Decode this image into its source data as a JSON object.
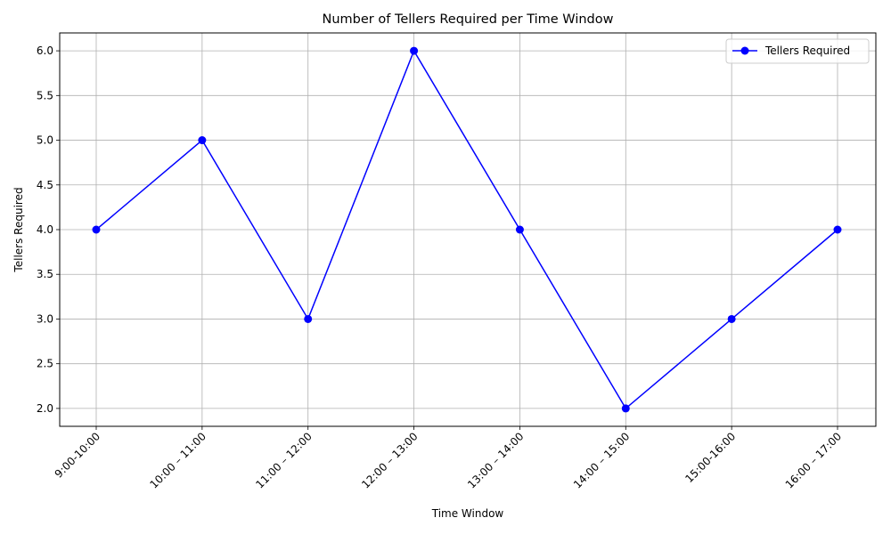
{
  "chart_data": {
    "type": "line",
    "title": "Number of Tellers Required per Time Window",
    "xlabel": "Time Window",
    "ylabel": "Tellers Required",
    "categories": [
      "9:00-10:00",
      "10:00 – 11:00",
      "11:00 – 12:00",
      "12:00 – 13:00",
      "13:00 – 14:00",
      "14:00 – 15:00",
      "15:00-16:00",
      "16:00 – 17:00"
    ],
    "series": [
      {
        "name": "Tellers Required",
        "values": [
          4,
          5,
          3,
          6,
          4,
          2,
          3,
          4
        ],
        "color": "#0000ff"
      }
    ],
    "ylim": [
      1.8,
      6.2
    ],
    "yticks": [
      "2.0",
      "2.5",
      "3.0",
      "3.5",
      "4.0",
      "4.5",
      "5.0",
      "5.5",
      "6.0"
    ],
    "grid": true,
    "legend_position": "top-right",
    "marker": "circle"
  }
}
